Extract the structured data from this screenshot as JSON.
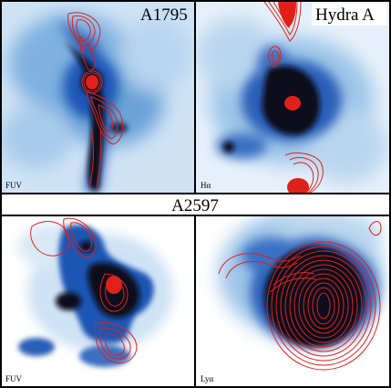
{
  "panels": {
    "top_left": {
      "title": "A1795",
      "band": "FUV"
    },
    "top_right": {
      "title": "Hydra A",
      "band": "Hα"
    },
    "bottom_left": {
      "band": "FUV"
    },
    "bottom_right": {
      "band": "Lyα"
    }
  },
  "bottom_title": "A2597",
  "colors": {
    "emission_dark": "#0a0f1e",
    "emission_mid": "#1f56b5",
    "emission_light": "#9cc4e8",
    "background_light": "#e8f2fb",
    "contour": "#e0211b",
    "frame": "#000000"
  }
}
